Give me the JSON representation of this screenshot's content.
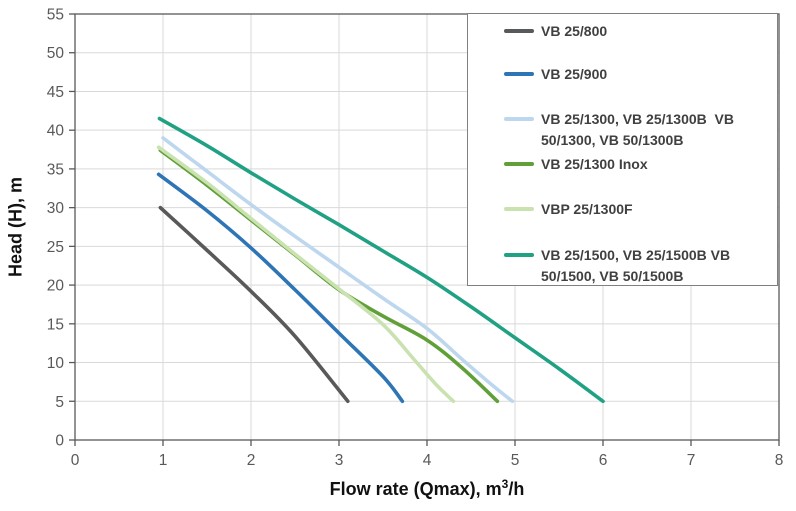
{
  "chart_data": {
    "type": "line",
    "title": "",
    "xlabel_main": "Flow rate (Qmax), m",
    "xlabel_sup": "3",
    "xlabel_rest": "/h",
    "xlabel_full": "Flow rate (Qmax), m³/h",
    "ylabel": "Head (H), m",
    "xlim": [
      0,
      8
    ],
    "ylim": [
      0,
      55
    ],
    "x_ticks": [
      0,
      1,
      2,
      3,
      4,
      5,
      6,
      7,
      8
    ],
    "y_ticks": [
      0,
      5,
      10,
      15,
      20,
      25,
      30,
      35,
      40,
      45,
      50,
      55
    ],
    "grid": true,
    "legend_position": "top-right",
    "series": [
      {
        "name": "VB 25/800",
        "color": "#58595B",
        "points": [
          [
            0.97,
            30
          ],
          [
            1.5,
            24.5
          ],
          [
            2,
            19.2
          ],
          [
            2.5,
            13.4
          ],
          [
            3.1,
            5
          ]
        ]
      },
      {
        "name": "VB 25/900",
        "color": "#2E75B6",
        "points": [
          [
            0.95,
            34.3
          ],
          [
            1.5,
            29.6
          ],
          [
            2,
            24.8
          ],
          [
            2.5,
            19.4
          ],
          [
            3,
            13.8
          ],
          [
            3.5,
            8.2
          ],
          [
            3.72,
            5
          ]
        ]
      },
      {
        "name": "VB 25/1300, VB 25/1300B, VB 50/1300, VB 50/1300B",
        "color": "#BDD7EE",
        "points": [
          [
            1,
            39
          ],
          [
            1.5,
            34.7
          ],
          [
            2,
            30.4
          ],
          [
            2.5,
            26.3
          ],
          [
            3,
            22.3
          ],
          [
            3.5,
            18.3
          ],
          [
            4,
            14.4
          ],
          [
            4.4,
            10.4
          ],
          [
            4.75,
            7
          ],
          [
            4.97,
            5
          ]
        ]
      },
      {
        "name": "VB 25/1300 Inox",
        "color": "#61A038",
        "points": [
          [
            0.97,
            37.4
          ],
          [
            1.5,
            32.9
          ],
          [
            2,
            28.4
          ],
          [
            2.5,
            23.9
          ],
          [
            3,
            19.4
          ],
          [
            3.5,
            16
          ],
          [
            4,
            12.9
          ],
          [
            4.4,
            9.3
          ],
          [
            4.8,
            5
          ]
        ]
      },
      {
        "name": "VBP 25/1300F",
        "color": "#C9E2B0",
        "points": [
          [
            0.95,
            37.8
          ],
          [
            1.5,
            33.2
          ],
          [
            2,
            28.6
          ],
          [
            2.5,
            24
          ],
          [
            3,
            19.5
          ],
          [
            3.5,
            14.9
          ],
          [
            3.86,
            10.3
          ],
          [
            4.1,
            7.2
          ],
          [
            4.3,
            5
          ]
        ]
      },
      {
        "name": "VB 25/1500, VB 25/1500B, VB 50/1500, VB 50/1500B",
        "color": "#21A184",
        "points": [
          [
            0.96,
            41.5
          ],
          [
            1.5,
            38
          ],
          [
            2,
            34.5
          ],
          [
            2.5,
            31.1
          ],
          [
            3,
            27.8
          ],
          [
            3.5,
            24.4
          ],
          [
            4,
            21
          ],
          [
            4.5,
            17.2
          ],
          [
            5,
            13.2
          ],
          [
            5.5,
            9.2
          ],
          [
            6,
            5
          ]
        ]
      }
    ],
    "legend_items": [
      {
        "lines": [
          "VB 25/800"
        ],
        "color": "#58595B"
      },
      {
        "lines": [
          "VB 25/900"
        ],
        "color": "#2E75B6"
      },
      {
        "lines": [
          "VB 25/1300, VB 25/1300B  VB",
          "50/1300, VB 50/1300B"
        ],
        "color": "#BDD7EE"
      },
      {
        "lines": [
          "VB 25/1300 Inox"
        ],
        "color": "#61A038"
      },
      {
        "lines": [
          "VBP 25/1300F"
        ],
        "color": "#C9E2B0"
      },
      {
        "lines": [
          "VB 25/1500, VB 25/1500B VB",
          "50/1500, VB 50/1500B"
        ],
        "color": "#21A184"
      }
    ]
  },
  "colors": {
    "axis_border": "#595959",
    "gridline": "#D9D9D9",
    "tick_label": "#595959",
    "axis_title": "#111111",
    "legend_border": "#808080",
    "legend_text": "#404040",
    "background": "#FFFFFF"
  }
}
